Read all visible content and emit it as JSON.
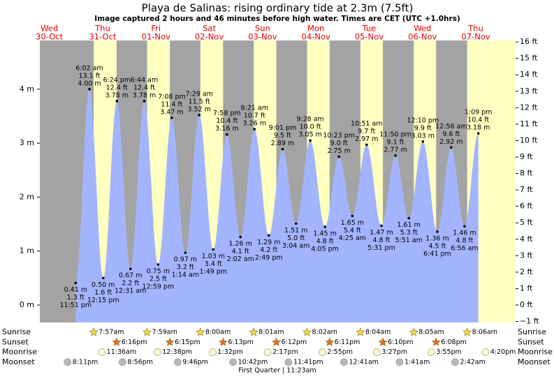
{
  "chart_data": {
    "type": "tide",
    "title": "Playa de Salinas: rising  ordinary tide at 2.3m (7.5ft)",
    "subtitle": "Image captured 2 hours and 46 minutes before high water. Times are CET (UTC +1.0hrs)",
    "days": [
      {
        "weekday": "Wed",
        "date": "30-Oct"
      },
      {
        "weekday": "Thu",
        "date": "31-Oct"
      },
      {
        "weekday": "Fri",
        "date": "01-Nov"
      },
      {
        "weekday": "Sat",
        "date": "02-Nov"
      },
      {
        "weekday": "Sun",
        "date": "03-Nov"
      },
      {
        "weekday": "Mon",
        "date": "04-Nov"
      },
      {
        "weekday": "Tue",
        "date": "05-Nov"
      },
      {
        "weekday": "Wed",
        "date": "06-Nov"
      },
      {
        "weekday": "Thu",
        "date": "07-Nov"
      }
    ],
    "tides": {
      "color": "#a3b4ff",
      "day": [
        0,
        1,
        1,
        1,
        2,
        2,
        2,
        2,
        3,
        3,
        3,
        3,
        4,
        4,
        4,
        4,
        5,
        5,
        5,
        5,
        6,
        6,
        6,
        6,
        7,
        7,
        7,
        8,
        8,
        8
      ],
      "times": [
        "11:51 pm",
        "6:02 am",
        "12:15 pm",
        "6:24 pm",
        "12:31 am",
        "6:44 am",
        "12:59 pm",
        "7:08 pm",
        "1:14 am",
        "7:29 am",
        "1:49 pm",
        "7:58 pm",
        "2:02 am",
        "8:21 am",
        "2:49 pm",
        "9:01 pm",
        "3:04 am",
        "9:28 am",
        "4:05 pm",
        "10:23 pm",
        "4:25 am",
        "10:51 am",
        "5:31 pm",
        "11:50 pm",
        "5:51 am",
        "12:10 pm",
        "6:41 pm",
        "12:56 am",
        "6:56 am",
        "1:09 pm"
      ],
      "values": [
        0.41,
        4,
        0.5,
        3.78,
        0.67,
        3.78,
        0.75,
        3.47,
        0.97,
        3.52,
        1.03,
        3.16,
        1.26,
        3.26,
        1.29,
        2.89,
        1.51,
        3.05,
        1.45,
        2.75,
        1.65,
        2.97,
        1.47,
        2.77,
        1.61,
        3.03,
        1.36,
        2.92,
        1.46,
        3.18
      ],
      "value_labels": [
        "0.41 m",
        "4.00 m",
        "0.50 m",
        "3.78 m",
        "0.67 m",
        "3.78 m",
        "0.75 m",
        "3.47 m",
        "0.97 m",
        "3.52 m",
        "1.03 m",
        "3.16 m",
        "1.26 m",
        "3.26 m",
        "1.29 m",
        "2.89 m",
        "1.51 m",
        "3.05 m",
        "1.45 m",
        "2.75 m",
        "1.65 m",
        "2.97 m",
        "1.47 m",
        "2.77 m",
        "1.61 m",
        "3.03 m",
        "1.36 m",
        "2.92 m",
        "1.46 m",
        "3.18 m"
      ],
      "feet_labels": [
        "1.3 ft",
        "13.1 ft",
        "1.6 ft",
        "12.4 ft",
        "2.2 ft",
        "12.4 ft",
        "2.5 ft",
        "11.4 ft",
        "3.2 ft",
        "11.5 ft",
        "3.4 ft",
        "10.4 ft",
        "4.1 ft",
        "10.7 ft",
        "4.2 ft",
        "9.5 ft",
        "5.0 ft",
        "10.0 ft",
        "4.8 ft",
        "9.0 ft",
        "5.4 ft",
        "9.7 ft",
        "4.8 ft",
        "9.1 ft",
        "5.3 ft",
        "9.9 ft",
        "4.5 ft",
        "9.6 ft",
        "4.8 ft",
        "10.4 ft"
      ]
    },
    "ylim": [
      -0.323,
      4.903
    ],
    "yticks": [
      {
        "value": 0,
        "label": "0 m"
      },
      {
        "value": 1,
        "label": "1 m"
      },
      {
        "value": 2,
        "label": "2 m"
      },
      {
        "value": 3,
        "label": "3 m"
      },
      {
        "value": 4,
        "label": "4 m"
      }
    ],
    "y2lim": [
      -1.06,
      16.09
    ],
    "y2ticks": [
      {
        "value": -1,
        "label": "−1 ft"
      },
      {
        "value": 0,
        "label": "0 ft"
      },
      {
        "value": 1,
        "label": "1 ft"
      },
      {
        "value": 2,
        "label": "2 ft"
      },
      {
        "value": 3,
        "label": "3 ft"
      },
      {
        "value": 4,
        "label": "4 ft"
      },
      {
        "value": 5,
        "label": "5 ft"
      },
      {
        "value": 6,
        "label": "6 ft"
      },
      {
        "value": 7,
        "label": "7 ft"
      },
      {
        "value": 8,
        "label": "8 ft"
      },
      {
        "value": 9,
        "label": "9 ft"
      },
      {
        "value": 10,
        "label": "10 ft"
      },
      {
        "value": 11,
        "label": "11 ft"
      },
      {
        "value": 12,
        "label": "12 ft"
      },
      {
        "value": 13,
        "label": "13 ft"
      },
      {
        "value": 14,
        "label": "14 ft"
      },
      {
        "value": 15,
        "label": "15 ft"
      },
      {
        "value": 16,
        "label": "16 ft"
      }
    ],
    "night_color": "#a3a3a3",
    "day_color": "#ffffc0",
    "sun_moon": [
      {
        "label": "Sunrise",
        "icon": "star",
        "color": "#f2d84a",
        "events": [
          {
            "day": 1,
            "time": "7:57am"
          },
          {
            "day": 2,
            "time": "7:59am"
          },
          {
            "day": 3,
            "time": "8:00am"
          },
          {
            "day": 4,
            "time": "8:01am"
          },
          {
            "day": 5,
            "time": "8:02am"
          },
          {
            "day": 6,
            "time": "8:04am"
          },
          {
            "day": 7,
            "time": "8:05am"
          },
          {
            "day": 8,
            "time": "8:06am"
          }
        ]
      },
      {
        "label": "Sunset",
        "icon": "star",
        "color": "#e0702a",
        "events": [
          {
            "day": 1,
            "time": "6:16pm"
          },
          {
            "day": 2,
            "time": "6:15pm"
          },
          {
            "day": 3,
            "time": "6:13pm"
          },
          {
            "day": 4,
            "time": "6:12pm"
          },
          {
            "day": 5,
            "time": "6:11pm"
          },
          {
            "day": 6,
            "time": "6:10pm"
          },
          {
            "day": 7,
            "time": "6:08pm"
          }
        ]
      },
      {
        "label": "Moonrise",
        "icon": "circle",
        "color": "#fdf7c6",
        "events": [
          {
            "day": 1,
            "time": "11:36am"
          },
          {
            "day": 2,
            "time": "12:38pm"
          },
          {
            "day": 3,
            "time": "1:32pm"
          },
          {
            "day": 4,
            "time": "2:17pm"
          },
          {
            "day": 5,
            "time": "2:55pm"
          },
          {
            "day": 6,
            "time": "3:27pm"
          },
          {
            "day": 7,
            "time": "3:55pm"
          },
          {
            "day": 8,
            "time": "4:20pm"
          }
        ]
      },
      {
        "label": "Moonset",
        "icon": "circle",
        "color": "#b8b8b0",
        "events": [
          {
            "day": 0,
            "time": "8:11pm"
          },
          {
            "day": 1,
            "time": "8:56pm"
          },
          {
            "day": 2,
            "time": "9:46pm"
          },
          {
            "day": 3,
            "time": "10:42pm"
          },
          {
            "day": 4,
            "time": "11:41pm"
          },
          {
            "day": 6,
            "time": "12:41am"
          },
          {
            "day": 7,
            "time": "1:41am"
          },
          {
            "day": 8,
            "time": "2:42am"
          }
        ]
      }
    ],
    "moon_phase": "First Quarter | 11:23am"
  }
}
